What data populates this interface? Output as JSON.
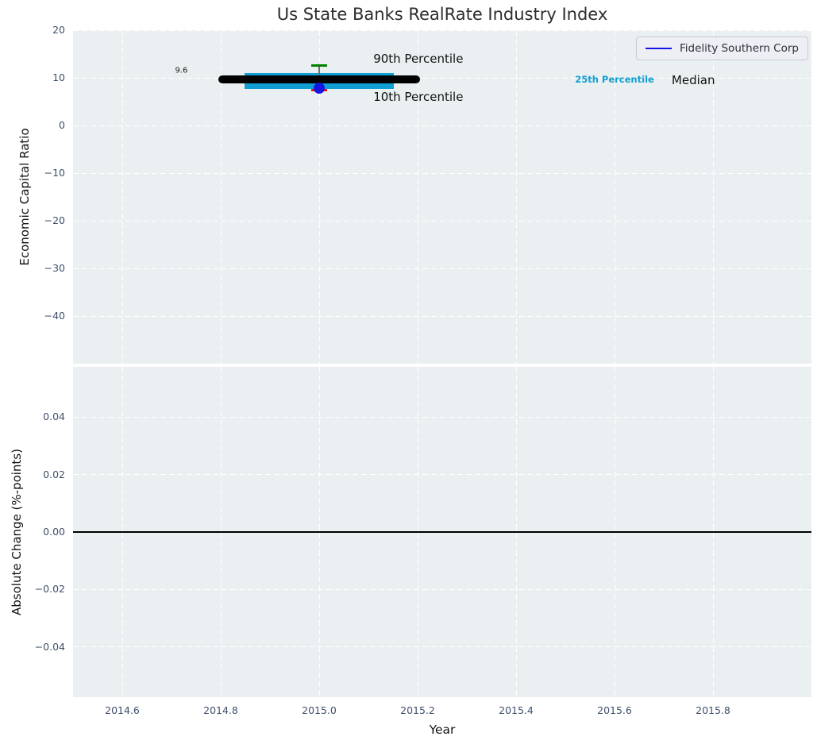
{
  "colors": {
    "plot_bg": "#eaeff1",
    "grid": "#ffffff",
    "title": "#2d2d2d",
    "tick_label": "#3f506b",
    "axis_label": "#141414",
    "median": "#000000",
    "box": "#109fd4",
    "p90_cap": "#008000",
    "p10_cap": "#ee1111",
    "whisker": "#6e6e6e",
    "company_dot": "#1515e0",
    "zero_line": "#000000",
    "legend_line": "#1414e8",
    "legend_bg": "rgba(239,239,245,0.85)",
    "legend_border": "#c9c9d4"
  },
  "chart_data": [
    {
      "type": "boxplot",
      "title": "Us State Banks RealRate Industry Index",
      "ylabel": "Economic Capital Ratio",
      "xlim": [
        2014.5,
        2016.0
      ],
      "ylim": [
        -50,
        20
      ],
      "yticks": [
        20,
        10,
        0,
        -10,
        -20,
        -30,
        -40
      ],
      "ytick_labels": [
        "20",
        "10",
        "0",
        "−10",
        "−20",
        "−30",
        "−40"
      ],
      "xticks": [
        2014.6,
        2014.8,
        2015.0,
        2015.2,
        2015.4,
        2015.6,
        2015.8
      ],
      "grid": "white-dashed",
      "legend": [
        "Fidelity Southern Corp"
      ],
      "legend_position": "upper right",
      "box": {
        "x": 2015.0,
        "median": 9.6,
        "q1": 7.7,
        "q3": 11.0,
        "p10": 7.4,
        "p90": 12.6,
        "company_value": 7.9,
        "median_halfwidth": 0.205,
        "box_halfwidth": 0.152,
        "cap_halfwidth": 0.016
      },
      "annotations": [
        {
          "text": "9.6",
          "x": 2014.72,
          "y": 11.5,
          "size": 10,
          "color": "#1a1a1a",
          "ha": "center",
          "bold": false
        },
        {
          "text": "90th Percentile",
          "x": 2015.11,
          "y": 14.0,
          "size": 15,
          "color": "#111111",
          "ha": "left",
          "bold": false
        },
        {
          "text": "10th Percentile",
          "x": 2015.11,
          "y": 6.0,
          "size": 15,
          "color": "#111111",
          "ha": "left",
          "bold": false
        },
        {
          "text": "25th Percentile",
          "x": 2015.6,
          "y": 9.6,
          "size": 11.5,
          "color": "#109fd4",
          "ha": "center",
          "bold": true
        },
        {
          "text": "Median",
          "x": 2015.76,
          "y": 9.5,
          "size": 15,
          "color": "#111111",
          "ha": "center",
          "bold": false
        }
      ]
    },
    {
      "type": "line",
      "ylabel": "Absolute Change (%-points)",
      "xlabel": "Year",
      "xlim": [
        2014.5,
        2016.0
      ],
      "ylim": [
        -0.0575,
        0.0575
      ],
      "yticks": [
        0.04,
        0.02,
        0.0,
        -0.02,
        -0.04
      ],
      "ytick_labels": [
        "0.04",
        "0.02",
        "0.00",
        "−0.02",
        "−0.04"
      ],
      "xticks": [
        2014.6,
        2014.8,
        2015.0,
        2015.2,
        2015.4,
        2015.6,
        2015.8
      ],
      "xtick_labels": [
        "2014.6",
        "2014.8",
        "2015.0",
        "2015.2",
        "2015.4",
        "2015.6",
        "2015.8"
      ],
      "grid": "white-dashed",
      "zero_line": 0.0,
      "series": []
    }
  ]
}
